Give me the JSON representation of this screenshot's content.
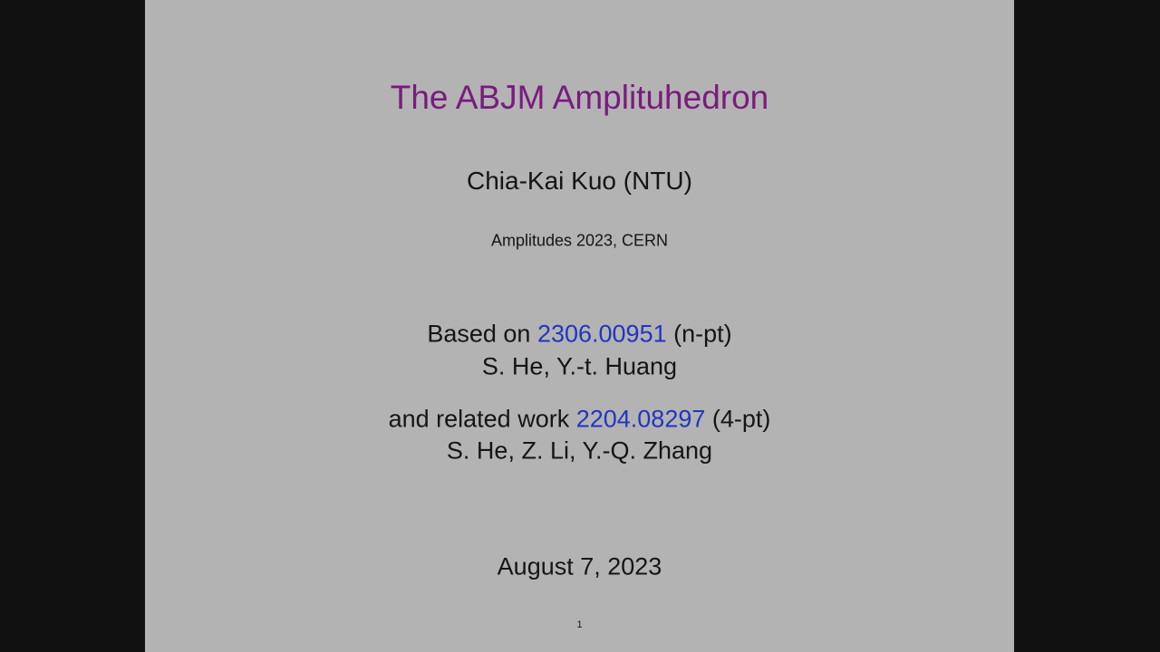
{
  "colors": {
    "background": "#b3b3b3",
    "letterbox": "#111111",
    "title": "#7a1a7e",
    "link": "#2235c0",
    "text": "#151515"
  },
  "slide": {
    "title": "The ABJM Amplituhedron",
    "author": "Chia-Kai Kuo (NTU)",
    "event": "Amplitudes 2023,  CERN",
    "based_on": {
      "prefix": "Based on ",
      "arxiv": "2306.00951",
      "suffix": " (n-pt)",
      "authors": "S. He, Y.-t. Huang"
    },
    "related": {
      "prefix": "and related work ",
      "arxiv": "2204.08297",
      "suffix": " (4-pt)",
      "authors": "S. He, Z. Li, Y.-Q. Zhang"
    },
    "date": "August 7, 2023",
    "page_number": "1"
  }
}
